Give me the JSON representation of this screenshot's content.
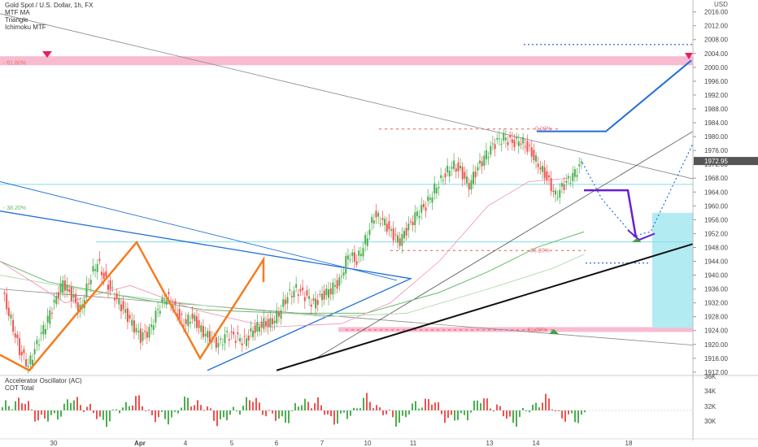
{
  "header": {
    "symbol": "Gold Spot / U.S. Dollar, 1h, FX",
    "indicators": [
      "MTF MA",
      "Triangle",
      "Ichimoku MTF"
    ]
  },
  "oscillator": {
    "indicators": [
      "Accelerator Oscillator (AC)",
      "COT Total"
    ],
    "scale_labels": [
      "36K",
      "34K",
      "32K",
      "30K"
    ]
  },
  "colors": {
    "up_candle": "#4caf50",
    "down_candle": "#ef5350",
    "pink_zone": "#f8bbd0",
    "cyan_zone": "#b2ebf2",
    "blue_line": "#1e6fd9",
    "orange_line": "#f57c20",
    "purple_line": "#6a1fd0",
    "price_marker": "#555555"
  },
  "chart_data": {
    "type": "candlestick",
    "currency": "USD",
    "y_ticks": [
      2016.0,
      2012.0,
      2008.0,
      2004.0,
      2000.0,
      1996.0,
      1992.0,
      1988.0,
      1984.0,
      1980.0,
      1976.0,
      1972.0,
      1968.0,
      1964.0,
      1960.0,
      1956.0,
      1952.0,
      1948.0,
      1944.0,
      1940.0,
      1936.0,
      1932.0,
      1928.0,
      1924.0,
      1920.0,
      1916.0,
      1912.0
    ],
    "ylim": [
      1911.5,
      2018.5
    ],
    "current_price": "1972.95",
    "x_ticks": [
      "30",
      "Apr",
      "4",
      "5",
      "6",
      "7",
      "10",
      "11",
      "13",
      "14",
      "18"
    ],
    "fib_labels": [
      "61.80%",
      "38.20%",
      "0.00%",
      "38.20%",
      "61.80%"
    ],
    "price_path": [
      1935,
      1927,
      1918,
      1914,
      1920,
      1926,
      1932,
      1938,
      1934,
      1930,
      1938,
      1944,
      1938,
      1934,
      1930,
      1926,
      1922,
      1924,
      1930,
      1934,
      1930,
      1926,
      1928,
      1924,
      1922,
      1920,
      1923,
      1922,
      1921,
      1924,
      1926,
      1926,
      1929,
      1934,
      1936,
      1934,
      1932,
      1934,
      1936,
      1938,
      1946,
      1944,
      1950,
      1957,
      1956,
      1952,
      1950,
      1954,
      1958,
      1960,
      1965,
      1968,
      1972,
      1970,
      1966,
      1971,
      1975,
      1978,
      1980,
      1978,
      1979,
      1976,
      1972,
      1968,
      1963,
      1966,
      1969,
      1972
    ]
  }
}
